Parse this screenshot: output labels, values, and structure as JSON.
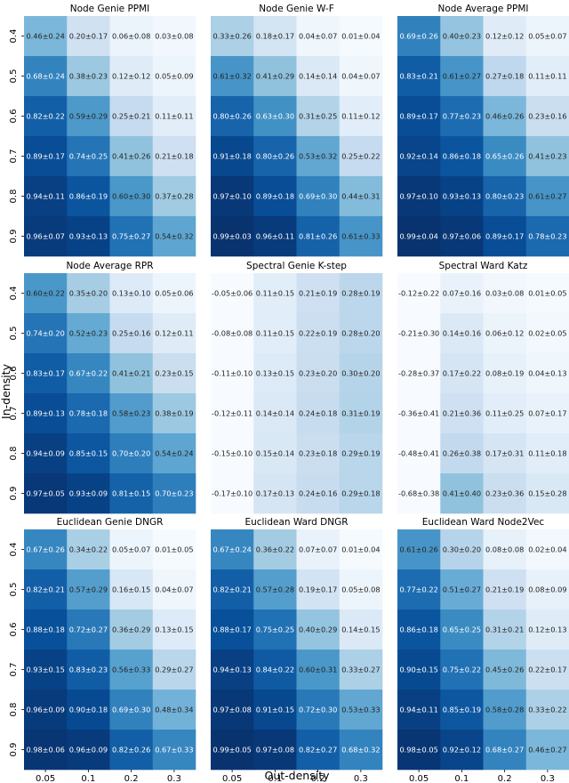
{
  "figure": {
    "xlabel": "Out-density",
    "ylabel": "In-density",
    "x_ticks": [
      "0.05",
      "0.1",
      "0.2",
      "0.3"
    ],
    "y_ticks": [
      "0.4",
      "0.5",
      "0.6",
      "0.7",
      "0.8",
      "0.9"
    ],
    "colormap": "Blues",
    "color_range": [
      0,
      1
    ]
  },
  "chart_data": [
    {
      "type": "heatmap",
      "title": "Node Genie PPMI",
      "x": [
        "0.05",
        "0.1",
        "0.2",
        "0.3"
      ],
      "y": [
        "0.4",
        "0.5",
        "0.6",
        "0.7",
        "0.8",
        "0.9"
      ],
      "cells": [
        [
          "0.46±0.24",
          "0.20±0.17",
          "0.06±0.08",
          "0.03±0.08"
        ],
        [
          "0.68±0.24",
          "0.38±0.23",
          "0.12±0.12",
          "0.05±0.09"
        ],
        [
          "0.82±0.22",
          "0.59±0.29",
          "0.25±0.21",
          "0.11±0.11"
        ],
        [
          "0.89±0.17",
          "0.74±0.25",
          "0.41±0.26",
          "0.21±0.18"
        ],
        [
          "0.94±0.11",
          "0.86±0.19",
          "0.60±0.30",
          "0.37±0.28"
        ],
        [
          "0.96±0.07",
          "0.93±0.13",
          "0.75±0.27",
          "0.54±0.32"
        ]
      ]
    },
    {
      "type": "heatmap",
      "title": "Node Genie W-F",
      "x": [
        "0.05",
        "0.1",
        "0.2",
        "0.3"
      ],
      "y": [
        "0.4",
        "0.5",
        "0.6",
        "0.7",
        "0.8",
        "0.9"
      ],
      "cells": [
        [
          "0.33±0.26",
          "0.18±0.17",
          "0.04±0.07",
          "0.01±0.04"
        ],
        [
          "0.61±0.32",
          "0.41±0.29",
          "0.14±0.14",
          "0.04±0.07"
        ],
        [
          "0.80±0.26",
          "0.63±0.30",
          "0.31±0.25",
          "0.11±0.12"
        ],
        [
          "0.91±0.18",
          "0.80±0.26",
          "0.53±0.32",
          "0.25±0.22"
        ],
        [
          "0.97±0.10",
          "0.89±0.18",
          "0.69±0.30",
          "0.44±0.31"
        ],
        [
          "0.99±0.03",
          "0.96±0.11",
          "0.81±0.26",
          "0.61±0.33"
        ]
      ]
    },
    {
      "type": "heatmap",
      "title": "Node Average PPMI",
      "x": [
        "0.05",
        "0.1",
        "0.2",
        "0.3"
      ],
      "y": [
        "0.4",
        "0.5",
        "0.6",
        "0.7",
        "0.8",
        "0.9"
      ],
      "cells": [
        [
          "0.69±0.26",
          "0.40±0.23",
          "0.12±0.12",
          "0.05±0.07"
        ],
        [
          "0.83±0.21",
          "0.61±0.27",
          "0.27±0.18",
          "0.11±0.11"
        ],
        [
          "0.89±0.17",
          "0.77±0.23",
          "0.46±0.26",
          "0.23±0.16"
        ],
        [
          "0.92±0.14",
          "0.86±0.18",
          "0.65±0.26",
          "0.41±0.23"
        ],
        [
          "0.97±0.10",
          "0.93±0.13",
          "0.80±0.23",
          "0.61±0.27"
        ],
        [
          "0.99±0.04",
          "0.97±0.06",
          "0.89±0.17",
          "0.78±0.23"
        ]
      ]
    },
    {
      "type": "heatmap",
      "title": "Node Average RPR",
      "x": [
        "0.05",
        "0.1",
        "0.2",
        "0.3"
      ],
      "y": [
        "0.4",
        "0.5",
        "0.6",
        "0.7",
        "0.8",
        "0.9"
      ],
      "cells": [
        [
          "0.60±0.22",
          "0.35±0.20",
          "0.13±0.10",
          "0.05±0.06"
        ],
        [
          "0.74±0.20",
          "0.52±0.23",
          "0.25±0.16",
          "0.12±0.11"
        ],
        [
          "0.83±0.17",
          "0.67±0.22",
          "0.41±0.21",
          "0.23±0.15"
        ],
        [
          "0.89±0.13",
          "0.78±0.18",
          "0.58±0.23",
          "0.38±0.19"
        ],
        [
          "0.94±0.09",
          "0.85±0.15",
          "0.70±0.20",
          "0.54±0.24"
        ],
        [
          "0.97±0.05",
          "0.93±0.09",
          "0.81±0.15",
          "0.70±0.23"
        ]
      ]
    },
    {
      "type": "heatmap",
      "title": "Spectral Genie K-step",
      "x": [
        "0.05",
        "0.1",
        "0.2",
        "0.3"
      ],
      "y": [
        "0.4",
        "0.5",
        "0.6",
        "0.7",
        "0.8",
        "0.9"
      ],
      "cells": [
        [
          "-0.05±0.06",
          "0.11±0.15",
          "0.21±0.19",
          "0.28±0.19"
        ],
        [
          "-0.08±0.08",
          "0.11±0.15",
          "0.22±0.19",
          "0.28±0.20"
        ],
        [
          "-0.11±0.10",
          "0.13±0.15",
          "0.23±0.20",
          "0.30±0.20"
        ],
        [
          "-0.12±0.11",
          "0.14±0.14",
          "0.24±0.18",
          "0.31±0.19"
        ],
        [
          "-0.15±0.10",
          "0.15±0.14",
          "0.23±0.18",
          "0.29±0.19"
        ],
        [
          "-0.17±0.10",
          "0.17±0.13",
          "0.24±0.16",
          "0.29±0.18"
        ]
      ]
    },
    {
      "type": "heatmap",
      "title": "Spectral Ward Katz",
      "x": [
        "0.05",
        "0.1",
        "0.2",
        "0.3"
      ],
      "y": [
        "0.4",
        "0.5",
        "0.6",
        "0.7",
        "0.8",
        "0.9"
      ],
      "cells": [
        [
          "-0.12±0.22",
          "0.07±0.16",
          "0.03±0.08",
          "0.01±0.05"
        ],
        [
          "-0.21±0.30",
          "0.14±0.16",
          "0.06±0.12",
          "0.02±0.05"
        ],
        [
          "-0.28±0.37",
          "0.17±0.22",
          "0.08±0.19",
          "0.04±0.13"
        ],
        [
          "-0.36±0.41",
          "0.21±0.36",
          "0.11±0.25",
          "0.07±0.17"
        ],
        [
          "-0.48±0.41",
          "0.26±0.38",
          "0.17±0.31",
          "0.11±0.18"
        ],
        [
          "-0.68±0.38",
          "0.41±0.40",
          "0.23±0.36",
          "0.15±0.28"
        ]
      ]
    },
    {
      "type": "heatmap",
      "title": "Euclidean Genie DNGR",
      "x": [
        "0.05",
        "0.1",
        "0.2",
        "0.3"
      ],
      "y": [
        "0.4",
        "0.5",
        "0.6",
        "0.7",
        "0.8",
        "0.9"
      ],
      "cells": [
        [
          "0.67±0.26",
          "0.34±0.22",
          "0.05±0.07",
          "0.01±0.05"
        ],
        [
          "0.82±0.21",
          "0.57±0.29",
          "0.16±0.15",
          "0.04±0.07"
        ],
        [
          "0.88±0.18",
          "0.72±0.27",
          "0.36±0.29",
          "0.13±0.15"
        ],
        [
          "0.93±0.15",
          "0.83±0.23",
          "0.56±0.33",
          "0.29±0.27"
        ],
        [
          "0.96±0.09",
          "0.90±0.18",
          "0.69±0.30",
          "0.48±0.34"
        ],
        [
          "0.98±0.06",
          "0.96±0.09",
          "0.82±0.26",
          "0.67±0.33"
        ]
      ]
    },
    {
      "type": "heatmap",
      "title": "Euclidean Ward DNGR",
      "x": [
        "0.05",
        "0.1",
        "0.2",
        "0.3"
      ],
      "y": [
        "0.4",
        "0.5",
        "0.6",
        "0.7",
        "0.8",
        "0.9"
      ],
      "cells": [
        [
          "0.67±0.24",
          "0.36±0.22",
          "0.07±0.07",
          "0.01±0.04"
        ],
        [
          "0.82±0.21",
          "0.57±0.28",
          "0.19±0.17",
          "0.05±0.08"
        ],
        [
          "0.88±0.17",
          "0.75±0.25",
          "0.40±0.29",
          "0.14±0.15"
        ],
        [
          "0.94±0.13",
          "0.84±0.22",
          "0.60±0.31",
          "0.33±0.27"
        ],
        [
          "0.97±0.08",
          "0.91±0.15",
          "0.72±0.30",
          "0.53±0.33"
        ],
        [
          "0.99±0.05",
          "0.97±0.08",
          "0.82±0.27",
          "0.68±0.32"
        ]
      ]
    },
    {
      "type": "heatmap",
      "title": "Euclidean Ward Node2Vec",
      "x": [
        "0.05",
        "0.1",
        "0.2",
        "0.3"
      ],
      "y": [
        "0.4",
        "0.5",
        "0.6",
        "0.7",
        "0.8",
        "0.9"
      ],
      "cells": [
        [
          "0.61±0.26",
          "0.30±0.20",
          "0.08±0.08",
          "0.02±0.04"
        ],
        [
          "0.77±0.22",
          "0.51±0.27",
          "0.21±0.19",
          "0.08±0.09"
        ],
        [
          "0.86±0.18",
          "0.65±0.25",
          "0.31±0.21",
          "0.12±0.13"
        ],
        [
          "0.90±0.15",
          "0.75±0.22",
          "0.45±0.26",
          "0.22±0.17"
        ],
        [
          "0.94±0.11",
          "0.85±0.19",
          "0.58±0.28",
          "0.33±0.22"
        ],
        [
          "0.98±0.05",
          "0.92±0.12",
          "0.68±0.27",
          "0.46±0.27"
        ]
      ]
    }
  ]
}
